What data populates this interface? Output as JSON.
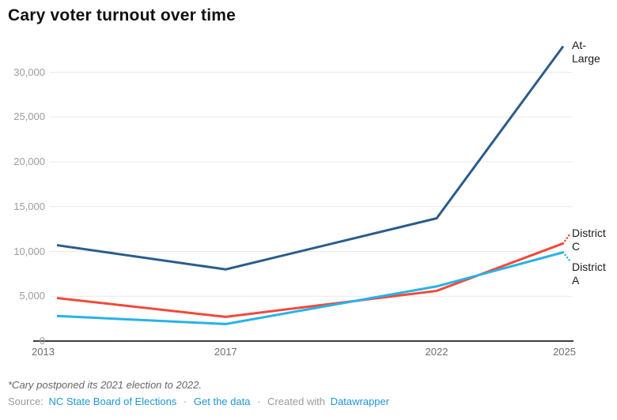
{
  "title": "Cary voter turnout over time",
  "footnote": "*Cary postponed its 2021 election to 2022.",
  "source": {
    "prefix": "Source:",
    "source_link": "NC State Board of Elections",
    "sep1": "·",
    "data_link": "Get the data",
    "sep2": "·",
    "created_with": "Created with",
    "tool_link": "Datawrapper"
  },
  "colors": {
    "at_large": "#2b5c8c",
    "district_c": "#f2493a",
    "district_a": "#28b2e7",
    "grid": "#e9e9e9",
    "axis": "#3d3d3d",
    "y_tick_text": "#9c9c9c",
    "x_tick_text": "#6e6e6e",
    "link_blue": "#1e96d6"
  },
  "chart_data": {
    "type": "line",
    "title": "Cary voter turnout over time",
    "x": [
      2013,
      2017,
      2022,
      2025
    ],
    "xticks": [
      "2013",
      "2017",
      "2022",
      "2025"
    ],
    "yticks": [
      {
        "v": 0,
        "label": "0"
      },
      {
        "v": 5000,
        "label": "5,000"
      },
      {
        "v": 10000,
        "label": "10,000"
      },
      {
        "v": 15000,
        "label": "15,000"
      },
      {
        "v": 20000,
        "label": "20,000"
      },
      {
        "v": 25000,
        "label": "25,000"
      },
      {
        "v": 30000,
        "label": "30,000"
      }
    ],
    "ylim": [
      0,
      33000
    ],
    "grid": true,
    "legend_position": "direct-labels-right-edge",
    "series": [
      {
        "name": "At-Large",
        "label_lines": [
          "At-",
          "Large"
        ],
        "color_key": "at_large",
        "values": [
          10700,
          8000,
          13700,
          32900
        ],
        "dashed_tail_value": null
      },
      {
        "name": "District C",
        "label_lines": [
          "District",
          "C"
        ],
        "color_key": "district_c",
        "values": [
          4800,
          2700,
          5600,
          10900
        ],
        "dashed_tail_value": 11900
      },
      {
        "name": "District A",
        "label_lines": [
          "District",
          "A"
        ],
        "color_key": "district_a",
        "values": [
          2800,
          1900,
          6100,
          9900
        ],
        "dashed_tail_value": 9000
      }
    ]
  }
}
